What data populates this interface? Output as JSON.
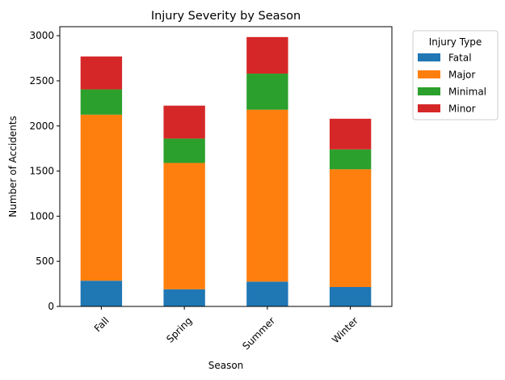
{
  "chart_data": {
    "type": "bar",
    "stacked": true,
    "title": "Injury Severity by Season",
    "xlabel": "Season",
    "ylabel": "Number of Accidents",
    "categories": [
      "Fall",
      "Spring",
      "Summer",
      "Winter"
    ],
    "series": [
      {
        "name": "Fatal",
        "color": "#1f77b4",
        "values": [
          285,
          190,
          275,
          215
        ]
      },
      {
        "name": "Major",
        "color": "#ff7f0e",
        "values": [
          1840,
          1400,
          1905,
          1305
        ]
      },
      {
        "name": "Minimal",
        "color": "#2ca02c",
        "values": [
          280,
          270,
          400,
          220
        ]
      },
      {
        "name": "Minor",
        "color": "#d62728",
        "values": [
          365,
          365,
          405,
          340
        ]
      }
    ],
    "ylim": [
      0,
      3100
    ],
    "yticks": [
      0,
      500,
      1000,
      1500,
      2000,
      2500,
      3000
    ],
    "grid": false,
    "legend": {
      "title": "Injury Type",
      "placement": "outside-top-right"
    }
  }
}
